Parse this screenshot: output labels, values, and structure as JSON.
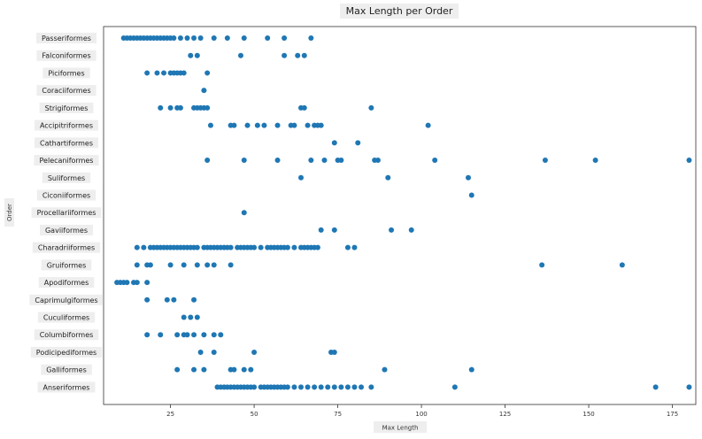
{
  "chart_data": {
    "type": "scatter",
    "title": "Max Length per Order",
    "xlabel": "Max Length",
    "ylabel": "Order",
    "xlim": [
      5,
      182
    ],
    "xticks": [
      {
        "value": 25,
        "label": "25"
      },
      {
        "value": 50,
        "label": "50"
      },
      {
        "value": 75,
        "label": "75"
      },
      {
        "value": 100,
        "label": "100"
      },
      {
        "value": 125,
        "label": "125"
      },
      {
        "value": 150,
        "label": "150"
      },
      {
        "value": 175,
        "label": "175"
      }
    ],
    "grid": false,
    "legend": "none",
    "marker_color": "#1f77b4",
    "categories": [
      "Passeriformes",
      "Falconiformes",
      "Piciformes",
      "Coraciiformes",
      "Strigiformes",
      "Accipitriformes",
      "Cathartiformes",
      "Pelecaniformes",
      "Suliformes",
      "Ciconiiformes",
      "Procellariiformes",
      "Gaviiformes",
      "Charadriiformes",
      "Gruiformes",
      "Apodiformes",
      "Caprimulgiformes",
      "Cuculiformes",
      "Columbiformes",
      "Podicipediformes",
      "Galliformes",
      "Anseriformes"
    ],
    "series": [
      {
        "category": "Passeriformes",
        "x": [
          11,
          12,
          13,
          14,
          15,
          16,
          17,
          18,
          19,
          20,
          21,
          22,
          23,
          24,
          25,
          26,
          28,
          30,
          32,
          34,
          38,
          42,
          47,
          54,
          59,
          67
        ]
      },
      {
        "category": "Falconiformes",
        "x": [
          31,
          33,
          46,
          59,
          63,
          65
        ]
      },
      {
        "category": "Piciformes",
        "x": [
          18,
          21,
          23,
          25,
          26,
          27,
          28,
          29,
          36
        ]
      },
      {
        "category": "Coraciiformes",
        "x": [
          35
        ]
      },
      {
        "category": "Strigiformes",
        "x": [
          22,
          25,
          27,
          28,
          32,
          33,
          34,
          35,
          36,
          64,
          65,
          85
        ]
      },
      {
        "category": "Accipitriformes",
        "x": [
          37,
          43,
          44,
          48,
          51,
          53,
          57,
          61,
          62,
          66,
          68,
          69,
          70,
          102
        ]
      },
      {
        "category": "Cathartiformes",
        "x": [
          74,
          81
        ]
      },
      {
        "category": "Pelecaniformes",
        "x": [
          36,
          47,
          57,
          67,
          71,
          75,
          76,
          86,
          87,
          104,
          137,
          152,
          180
        ]
      },
      {
        "category": "Suliformes",
        "x": [
          64,
          90,
          114
        ]
      },
      {
        "category": "Ciconiiformes",
        "x": [
          115
        ]
      },
      {
        "category": "Procellariiformes",
        "x": [
          47
        ]
      },
      {
        "category": "Gaviiformes",
        "x": [
          70,
          74,
          91,
          97
        ]
      },
      {
        "category": "Charadriiformes",
        "x": [
          15,
          17,
          19,
          20,
          21,
          22,
          23,
          24,
          25,
          26,
          27,
          28,
          29,
          30,
          31,
          32,
          33,
          35,
          36,
          37,
          38,
          39,
          40,
          41,
          42,
          43,
          45,
          46,
          47,
          48,
          49,
          50,
          52,
          54,
          55,
          56,
          57,
          58,
          59,
          60,
          62,
          64,
          65,
          66,
          67,
          68,
          69,
          78,
          80
        ]
      },
      {
        "category": "Gruiformes",
        "x": [
          15,
          18,
          19,
          25,
          29,
          33,
          36,
          38,
          43,
          136,
          160
        ]
      },
      {
        "category": "Apodiformes",
        "x": [
          9,
          10,
          11,
          12,
          14,
          15,
          18
        ]
      },
      {
        "category": "Caprimulgiformes",
        "x": [
          18,
          24,
          26,
          32
        ]
      },
      {
        "category": "Cuculiformes",
        "x": [
          29,
          31,
          33
        ]
      },
      {
        "category": "Columbiformes",
        "x": [
          18,
          22,
          27,
          29,
          30,
          32,
          35,
          38,
          40
        ]
      },
      {
        "category": "Podicipediformes",
        "x": [
          34,
          38,
          50,
          73,
          74
        ]
      },
      {
        "category": "Galliformes",
        "x": [
          27,
          32,
          35,
          43,
          44,
          47,
          49,
          89,
          115
        ]
      },
      {
        "category": "Anseriformes",
        "x": [
          39,
          40,
          41,
          42,
          43,
          44,
          45,
          46,
          47,
          48,
          49,
          50,
          52,
          53,
          54,
          55,
          56,
          57,
          58,
          59,
          60,
          62,
          64,
          66,
          68,
          70,
          72,
          74,
          76,
          78,
          80,
          82,
          85,
          110,
          170,
          180
        ]
      }
    ]
  }
}
